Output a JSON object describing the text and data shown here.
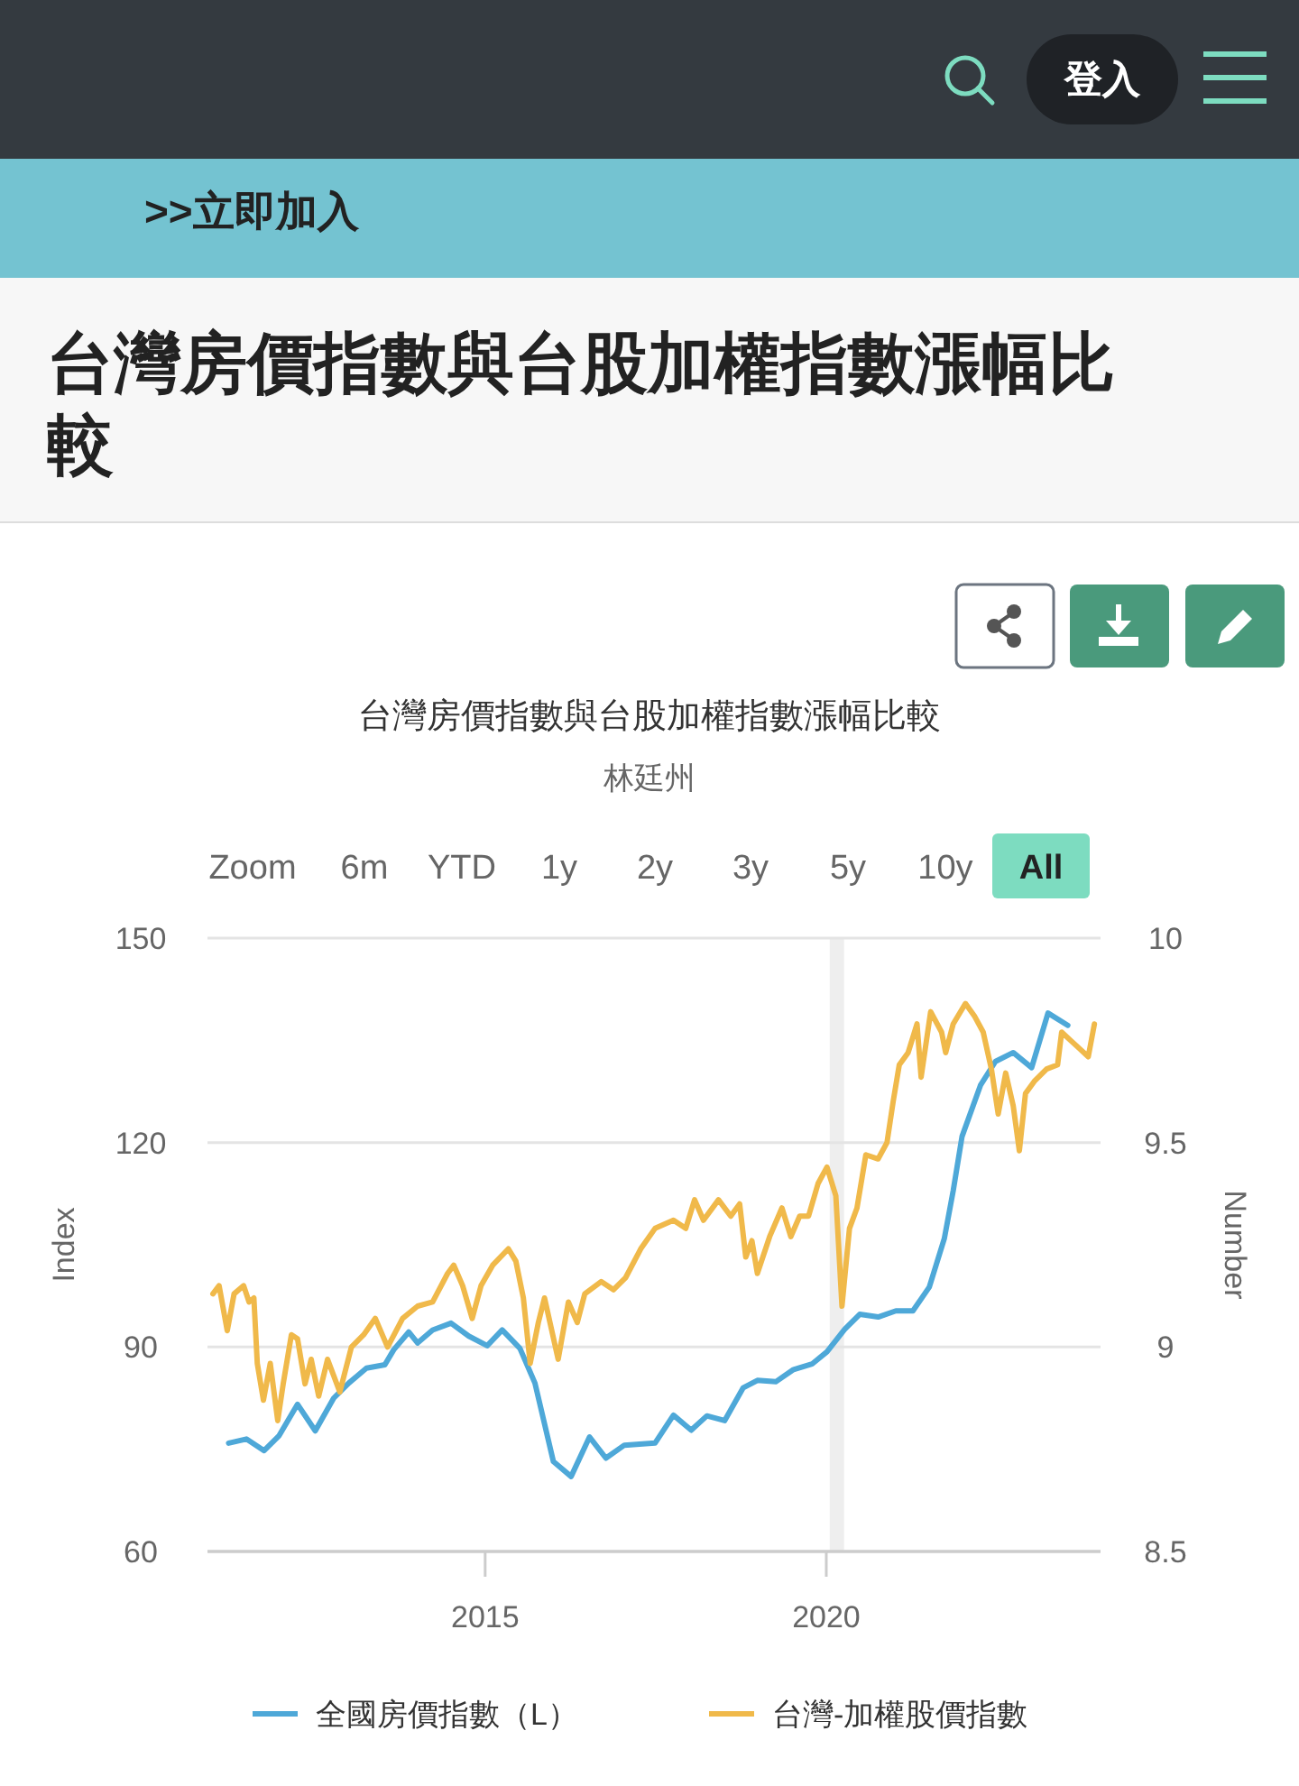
{
  "chart_data": {
    "type": "line",
    "title": "台灣房價指數與台股加權指數漲幅比較",
    "subtitle": "林廷州",
    "ylabel": "Index",
    "y2label": "Number",
    "annotations": [
      "台灣房價指數與台股加權指數漲幅比較",
      ">>立即加入",
      "登入",
      "Zoom",
      "6m",
      "YTD",
      "1y",
      "2y",
      "3y",
      "5y",
      "10y",
      "All"
    ],
    "xlim": [
      2010.93,
      2024.02
    ],
    "xticks": [
      2015,
      2020
    ],
    "ylim": [
      60,
      150
    ],
    "yticks": [
      60,
      90,
      120,
      150
    ],
    "y2lim": [
      8.5,
      10
    ],
    "y2ticks": [
      8.5,
      9,
      9.5,
      10
    ],
    "grid": "y",
    "legend": "bottom",
    "bands": [
      {
        "axis": "x",
        "from": 2020.05,
        "to": 2020.26,
        "color": "#eeeeee"
      }
    ],
    "series": [
      {
        "name": "全國房價指數（L）",
        "color": "#4ea8d8",
        "x": [
          2011.24,
          2011.5,
          2011.76,
          2011.98,
          2012.25,
          2012.51,
          2012.78,
          2013.0,
          2013.26,
          2013.53,
          2013.66,
          2013.88,
          2014.01,
          2014.23,
          2014.5,
          2014.76,
          2015.03,
          2015.25,
          2015.51,
          2015.73,
          2016.0,
          2016.26,
          2016.53,
          2016.77,
          2017.04,
          2017.49,
          2017.76,
          2018.02,
          2018.25,
          2018.51,
          2018.78,
          2018.99,
          2019.26,
          2019.52,
          2019.79,
          2020.01,
          2020.27,
          2020.49,
          2020.76,
          2021.02,
          2021.27,
          2021.51,
          2021.73,
          2021.86,
          2021.99,
          2022.26,
          2022.48,
          2022.74,
          2023.01,
          2023.25,
          2023.54
        ],
        "values": [
          75.9,
          76.5,
          74.8,
          77.0,
          81.6,
          77.7,
          82.5,
          84.7,
          86.9,
          87.4,
          89.6,
          92.2,
          90.6,
          92.5,
          93.5,
          91.6,
          90.2,
          92.5,
          89.8,
          84.7,
          73.2,
          71.0,
          76.8,
          73.7,
          75.6,
          75.9,
          80.0,
          77.8,
          79.9,
          79.2,
          84.0,
          85.1,
          84.9,
          86.7,
          87.5,
          89.3,
          92.6,
          94.8,
          94.4,
          95.3,
          95.3,
          98.8,
          105.9,
          112.9,
          120.9,
          128.4,
          131.9,
          133.2,
          131.0,
          139.0,
          137.2
        ]
      },
      {
        "name": "台灣-加權股價指數",
        "color": "#f0b94a",
        "axis": "y2",
        "x": [
          2011.01,
          2011.1,
          2011.22,
          2011.32,
          2011.46,
          2011.54,
          2011.61,
          2011.66,
          2011.75,
          2011.85,
          2011.96,
          2012.04,
          2012.16,
          2012.25,
          2012.36,
          2012.45,
          2012.56,
          2012.69,
          2012.87,
          2013.04,
          2013.22,
          2013.39,
          2013.57,
          2013.79,
          2014.01,
          2014.23,
          2014.45,
          2014.54,
          2014.67,
          2014.81,
          2014.94,
          2015.11,
          2015.34,
          2015.45,
          2015.56,
          2015.66,
          2015.78,
          2015.87,
          2015.95,
          2016.07,
          2016.22,
          2016.35,
          2016.46,
          2016.7,
          2016.88,
          2017.06,
          2017.28,
          2017.49,
          2017.76,
          2017.94,
          2018.07,
          2018.2,
          2018.42,
          2018.6,
          2018.73,
          2018.82,
          2018.91,
          2018.99,
          2019.17,
          2019.35,
          2019.48,
          2019.61,
          2019.74,
          2019.88,
          2020.01,
          2020.14,
          2020.23,
          2020.34,
          2020.45,
          2020.58,
          2020.76,
          2020.89,
          2020.98,
          2021.07,
          2021.2,
          2021.33,
          2021.39,
          2021.53,
          2021.69,
          2021.75,
          2021.86,
          2022.04,
          2022.17,
          2022.3,
          2022.42,
          2022.52,
          2022.63,
          2022.74,
          2022.83,
          2022.92,
          2023.05,
          2023.23,
          2023.39,
          2023.45,
          2023.58,
          2023.71,
          2023.84,
          2023.93
        ],
        "values": [
          9.13,
          9.15,
          9.04,
          9.13,
          9.15,
          9.11,
          9.12,
          8.96,
          8.87,
          8.96,
          8.82,
          8.91,
          9.03,
          9.02,
          8.91,
          8.97,
          8.88,
          8.97,
          8.89,
          9.0,
          9.03,
          9.07,
          9.0,
          9.07,
          9.1,
          9.11,
          9.18,
          9.2,
          9.15,
          9.07,
          9.15,
          9.2,
          9.24,
          9.21,
          9.12,
          8.96,
          9.06,
          9.12,
          9.06,
          8.97,
          9.11,
          9.06,
          9.13,
          9.16,
          9.14,
          9.17,
          9.24,
          9.29,
          9.31,
          9.29,
          9.36,
          9.31,
          9.36,
          9.32,
          9.35,
          9.22,
          9.26,
          9.18,
          9.27,
          9.34,
          9.27,
          9.32,
          9.32,
          9.4,
          9.44,
          9.37,
          9.1,
          9.29,
          9.34,
          9.47,
          9.46,
          9.5,
          9.6,
          9.69,
          9.72,
          9.79,
          9.66,
          9.82,
          9.77,
          9.72,
          9.79,
          9.84,
          9.81,
          9.77,
          9.68,
          9.57,
          9.67,
          9.59,
          9.48,
          9.62,
          9.65,
          9.68,
          9.69,
          9.77,
          9.75,
          9.73,
          9.71,
          9.79
        ]
      }
    ]
  }
}
